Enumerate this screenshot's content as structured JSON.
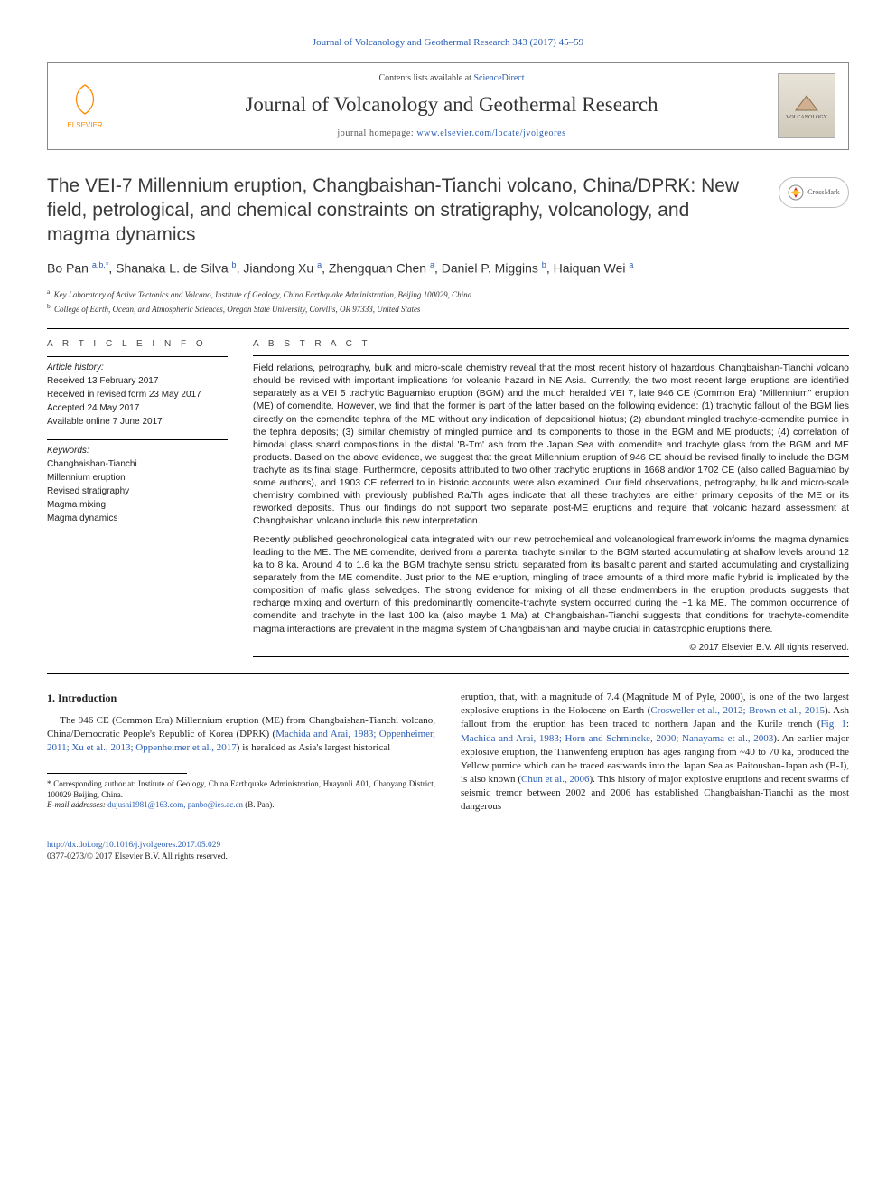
{
  "header": {
    "issue_line": "Journal of Volcanology and Geothermal Research 343 (2017) 45–59",
    "contents_text": "Contents lists available at ",
    "contents_link": "ScienceDirect",
    "journal_name": "Journal of Volcanology and Geothermal Research",
    "home_label": "journal homepage: ",
    "home_url": "www.elsevier.com/locate/jvolgeores",
    "publisher": "ELSEVIER",
    "cover_label": "VOLCANOLOGY",
    "crossmark": "CrossMark"
  },
  "title": "The VEI-7 Millennium eruption, Changbaishan-Tianchi volcano, China/DPRK: New field, petrological, and chemical constraints on stratigraphy, volcanology, and magma dynamics",
  "authors": "Bo Pan <sup>a,b,*</sup>, Shanaka L. de Silva <sup>b</sup>, Jiandong Xu <sup>a</sup>, Zhengquan Chen <sup>a</sup>, Daniel P. Miggins <sup>b</sup>, Haiquan Wei <sup>a</sup>",
  "affiliations": [
    {
      "sup": "a",
      "text": "Key Laboratory of Active Tectonics and Volcano, Institute of Geology, China Earthquake Administration, Beijing 100029, China"
    },
    {
      "sup": "b",
      "text": "College of Earth, Ocean, and Atmospheric Sciences, Oregon State University, Corvllis, OR 97333, United States"
    }
  ],
  "article_info": {
    "head": "A R T I C L E   I N F O",
    "history_label": "Article history:",
    "history": [
      "Received 13 February 2017",
      "Received in revised form 23 May 2017",
      "Accepted 24 May 2017",
      "Available online 7 June 2017"
    ],
    "keywords_label": "Keywords:",
    "keywords": [
      "Changbaishan-Tianchi",
      "Millennium eruption",
      "Revised stratigraphy",
      "Magma mixing",
      "Magma dynamics"
    ]
  },
  "abstract": {
    "head": "A B S T R A C T",
    "paragraphs": [
      "Field relations, petrography, bulk and micro-scale chemistry reveal that the most recent history of hazardous Changbaishan-Tianchi volcano should be revised with important implications for volcanic hazard in NE Asia. Currently, the two most recent large eruptions are identified separately as a VEI 5 trachytic Baguamiao eruption (BGM) and the much heralded VEI 7, late 946 CE (Common Era) \"Millennium\" eruption (ME) of comendite. However, we find that the former is part of the latter based on the following evidence: (1) trachytic fallout of the BGM lies directly on the comendite tephra of the ME without any indication of depositional hiatus; (2) abundant mingled trachyte-comendite pumice in the tephra deposits; (3) similar chemistry of mingled pumice and its components to those in the BGM and ME products; (4) correlation of bimodal glass shard compositions in the distal 'B-Tm' ash from the Japan Sea with comendite and trachyte glass from the BGM and ME products. Based on the above evidence, we suggest that the great Millennium eruption of 946 CE should be revised finally to include the BGM trachyte as its final stage. Furthermore, deposits attributed to two other trachytic eruptions in 1668 and/or 1702 CE (also called Baguamiao by some authors), and 1903 CE referred to in historic accounts were also examined. Our field observations, petrography, bulk and micro-scale chemistry combined with previously published Ra/Th ages indicate that all these trachytes are either primary deposits of the ME or its reworked deposits. Thus our findings do not support two separate post-ME eruptions and require that volcanic hazard assessment at Changbaishan volcano include this new interpretation.",
      "Recently published geochronological data integrated with our new petrochemical and volcanological framework informs the magma dynamics leading to the ME. The ME comendite, derived from a parental trachyte similar to the BGM started accumulating at shallow levels around 12 ka to 8 ka. Around 4 to 1.6 ka the BGM trachyte sensu strictu separated from its basaltic parent and started accumulating and crystallizing separately from the ME comendite. Just prior to the ME eruption, mingling of trace amounts of a third more mafic hybrid is implicated by the composition of mafic glass selvedges. The strong evidence for mixing of all these endmembers in the eruption products suggests that recharge mixing and overturn of this predominantly comendite-trachyte system occurred during the ~1 ka ME. The common occurrence of comendite and trachyte in the last 100 ka (also maybe 1 Ma) at Changbaishan-Tianchi suggests that conditions for trachyte-comendite magma interactions are prevalent in the magma system of Changbaishan and maybe crucial in catastrophic eruptions there."
    ],
    "copyright": "© 2017 Elsevier B.V. All rights reserved."
  },
  "intro": {
    "heading": "1. Introduction",
    "left": "The 946 CE (Common Era) Millennium eruption (ME) from Changbaishan-Tianchi volcano, China/Democratic People's Republic of Korea (DPRK) (<a>Machida and Arai, 1983; Oppenheimer, 2011; Xu et al., 2013; Oppenheimer et al., 2017</a>) is heralded as Asia's largest historical",
    "right": "eruption, that, with a magnitude of 7.4 (Magnitude M of Pyle, 2000), is one of the two largest explosive eruptions in the Holocene on Earth (<a>Crosweller et al., 2012; Brown et al., 2015</a>). Ash fallout from the eruption has been traced to northern Japan and the Kurile trench (<a>Fig. 1</a>: <a>Machida and Arai, 1983; Horn and Schmincke, 2000; Nanayama et al., 2003</a>). An earlier major explosive eruption, the Tianwenfeng eruption has ages ranging from ~40 to 70 ka, produced the Yellow pumice which can be traced eastwards into the Japan Sea as Baitoushan-Japan ash (B-J), is also known (<a>Chun et al., 2006</a>). This history of major explosive eruptions and recent swarms of seismic tremor between 2002 and 2006 has established Changbaishan-Tianchi as the most dangerous"
  },
  "footnote": {
    "star": "* Corresponding author at: Institute of Geology, China Earthquake Administration, Huayanli A01, Chaoyang District, 100029 Beijing, China.",
    "email_label": "E-mail addresses:",
    "emails": "dujushi1981@163.com, panbo@ies.ac.cn",
    "email_suffix": "(B. Pan)."
  },
  "doi": {
    "url": "http://dx.doi.org/10.1016/j.jvolgeores.2017.05.029",
    "issn_line": "0377-0273/© 2017 Elsevier B.V. All rights reserved."
  },
  "colors": {
    "link": "#2a5db0",
    "text": "#222222",
    "rule": "#000000",
    "elsevier_orange": "#ff8a00"
  }
}
